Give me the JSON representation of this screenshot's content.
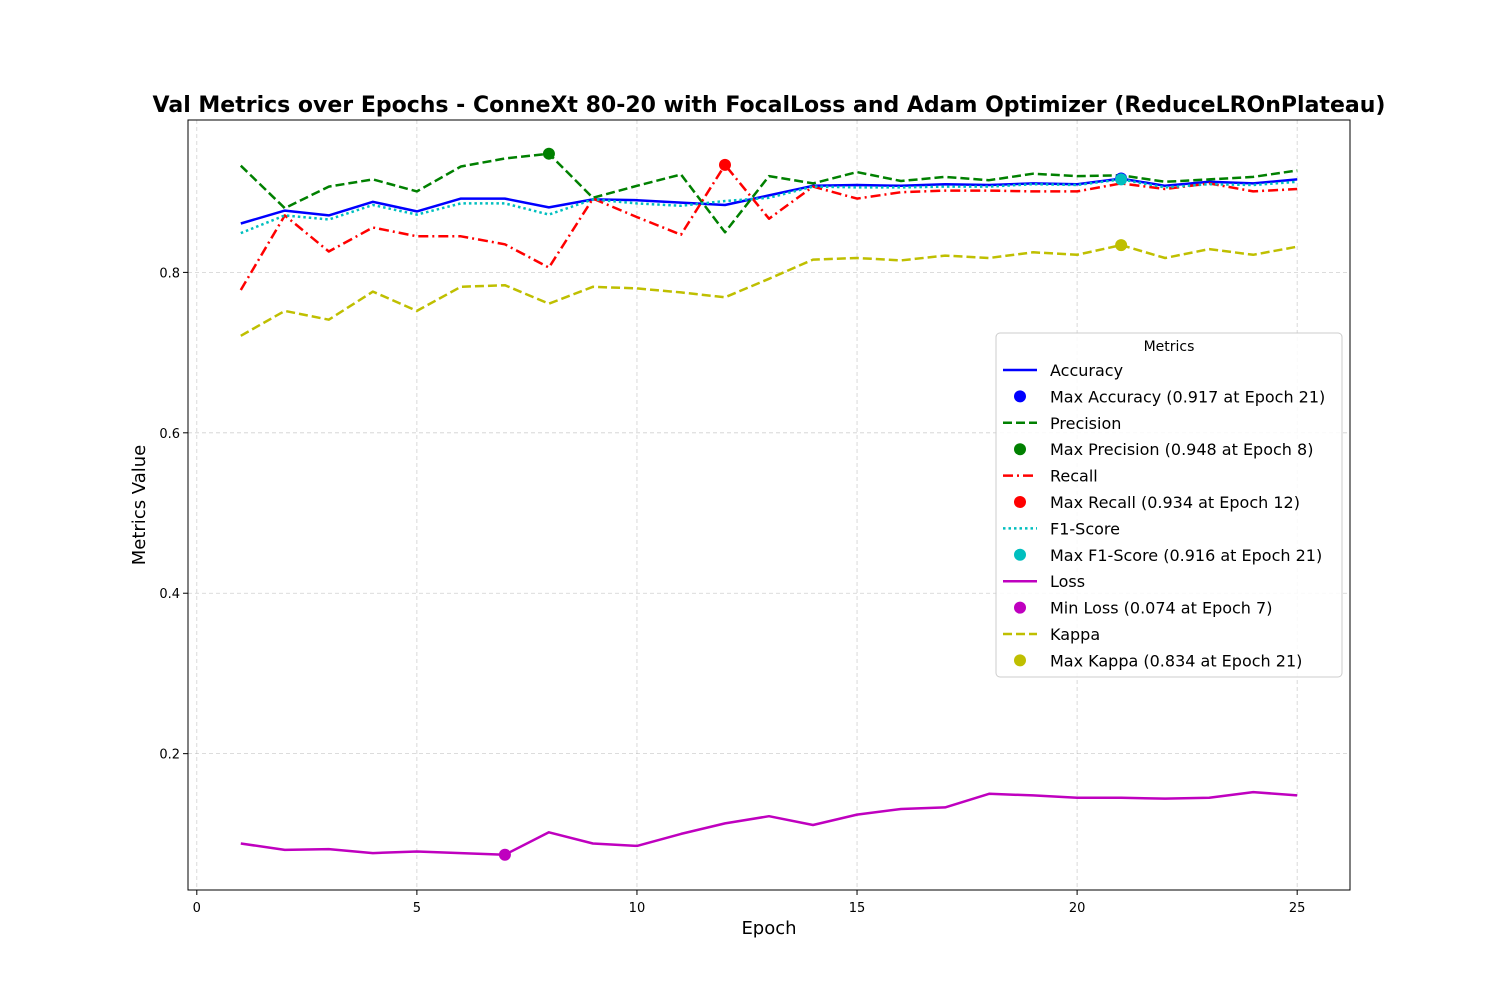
{
  "chart_data": {
    "type": "line",
    "title": "Val Metrics over Epochs - ConneXt 80-20 with FocalLoss and Adam Optimizer (ReduceLROnPlateau)",
    "xlabel": "Epoch",
    "ylabel": "Metrics Value",
    "xlim": [
      -0.2,
      26.2
    ],
    "ylim": [
      0.03,
      0.99
    ],
    "x_ticks": [
      0,
      5,
      10,
      15,
      20,
      25
    ],
    "y_ticks": [
      0.2,
      0.4,
      0.6,
      0.8
    ],
    "grid": true,
    "legend_title": "Metrics",
    "legend_position": "center-right",
    "x": [
      1,
      2,
      3,
      4,
      5,
      6,
      7,
      8,
      9,
      10,
      11,
      12,
      13,
      14,
      15,
      16,
      17,
      18,
      19,
      20,
      21,
      22,
      23,
      24,
      25
    ],
    "series": [
      {
        "name": "Accuracy",
        "color": "#0000ff",
        "style": "solid",
        "values": [
          0.861,
          0.877,
          0.871,
          0.888,
          0.876,
          0.892,
          0.892,
          0.881,
          0.891,
          0.89,
          0.887,
          0.884,
          0.896,
          0.908,
          0.909,
          0.908,
          0.91,
          0.909,
          0.911,
          0.91,
          0.917,
          0.908,
          0.913,
          0.911,
          0.916
        ]
      },
      {
        "name": "Precision",
        "color": "#008000",
        "style": "dashed",
        "values": [
          0.933,
          0.88,
          0.907,
          0.916,
          0.901,
          0.932,
          0.942,
          0.948,
          0.893,
          0.908,
          0.922,
          0.85,
          0.92,
          0.911,
          0.925,
          0.914,
          0.919,
          0.915,
          0.923,
          0.92,
          0.921,
          0.913,
          0.916,
          0.919,
          0.927
        ]
      },
      {
        "name": "Recall",
        "color": "#ff0000",
        "style": "dashdot",
        "values": [
          0.778,
          0.871,
          0.826,
          0.856,
          0.845,
          0.845,
          0.835,
          0.806,
          0.892,
          0.869,
          0.847,
          0.934,
          0.867,
          0.907,
          0.892,
          0.9,
          0.902,
          0.902,
          0.901,
          0.901,
          0.911,
          0.904,
          0.911,
          0.901,
          0.904
        ]
      },
      {
        "name": "F1-Score",
        "color": "#00bfbf",
        "style": "dotted",
        "values": [
          0.849,
          0.871,
          0.866,
          0.884,
          0.872,
          0.886,
          0.886,
          0.872,
          0.891,
          0.886,
          0.883,
          0.889,
          0.893,
          0.907,
          0.906,
          0.906,
          0.907,
          0.907,
          0.91,
          0.909,
          0.916,
          0.906,
          0.91,
          0.909,
          0.913
        ]
      },
      {
        "name": "Loss",
        "color": "#bf00bf",
        "style": "solid",
        "values": [
          0.088,
          0.08,
          0.081,
          0.076,
          0.078,
          0.076,
          0.074,
          0.102,
          0.088,
          0.085,
          0.1,
          0.113,
          0.122,
          0.111,
          0.124,
          0.131,
          0.133,
          0.15,
          0.148,
          0.145,
          0.145,
          0.144,
          0.145,
          0.152,
          0.148
        ]
      },
      {
        "name": "Kappa",
        "color": "#bfbf00",
        "style": "dashed",
        "values": [
          0.721,
          0.752,
          0.741,
          0.776,
          0.752,
          0.782,
          0.784,
          0.761,
          0.782,
          0.78,
          0.775,
          0.769,
          0.792,
          0.816,
          0.818,
          0.815,
          0.821,
          0.818,
          0.825,
          0.822,
          0.834,
          0.818,
          0.829,
          0.822,
          0.832
        ]
      }
    ],
    "markers": [
      {
        "name": "Max Accuracy (0.917 at Epoch 21)",
        "color": "#0000ff",
        "x": 21,
        "y": 0.917
      },
      {
        "name": "Max Precision (0.948 at Epoch 8)",
        "color": "#008000",
        "x": 8,
        "y": 0.948
      },
      {
        "name": "Max Recall (0.934 at Epoch 12)",
        "color": "#ff0000",
        "x": 12,
        "y": 0.934
      },
      {
        "name": "Max F1-Score (0.916 at Epoch 21)",
        "color": "#00bfbf",
        "x": 21,
        "y": 0.916
      },
      {
        "name": "Min Loss (0.074 at Epoch 7)",
        "color": "#bf00bf",
        "x": 7,
        "y": 0.074
      },
      {
        "name": "Max Kappa (0.834 at Epoch 21)",
        "color": "#bfbf00",
        "x": 21,
        "y": 0.834
      }
    ]
  }
}
